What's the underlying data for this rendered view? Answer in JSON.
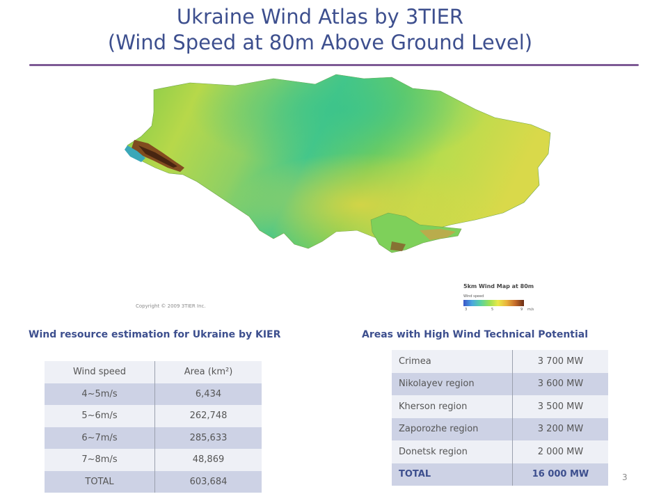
{
  "title_line1": "Ukraine Wind Atlas by 3TIER",
  "title_line2": "(Wind Speed at 80m Above Ground Level)",
  "map": {
    "copyright": "Copyright © 2009 3TIER Inc.",
    "legend_title": "5km Wind Map at 80m",
    "legend_label": "Wind speed",
    "legend_ticks": [
      "3",
      "5",
      "9",
      "m/s"
    ]
  },
  "left_section": {
    "heading": "Wind resource estimation for Ukraine by KIER",
    "headers": [
      "Wind speed",
      "Area (km²)"
    ],
    "rows": [
      [
        "4~5m/s",
        "6,434"
      ],
      [
        "5~6m/s",
        "262,748"
      ],
      [
        "6~7m/s",
        "285,633"
      ],
      [
        "7~8m/s",
        "48,869"
      ],
      [
        "TOTAL",
        "603,684"
      ]
    ]
  },
  "right_section": {
    "heading": "Areas with High Wind Technical Potential",
    "rows": [
      [
        "Crimea",
        "3 700 MW"
      ],
      [
        "Nikolayev region",
        "3 600 MW"
      ],
      [
        "Kherson region",
        "3 500 MW"
      ],
      [
        "Zaporozhe region",
        "3 200 MW"
      ],
      [
        "Donetsk region",
        "2 000 MW"
      ],
      [
        "TOTAL",
        "16 000 MW"
      ]
    ]
  },
  "page_number": "3"
}
